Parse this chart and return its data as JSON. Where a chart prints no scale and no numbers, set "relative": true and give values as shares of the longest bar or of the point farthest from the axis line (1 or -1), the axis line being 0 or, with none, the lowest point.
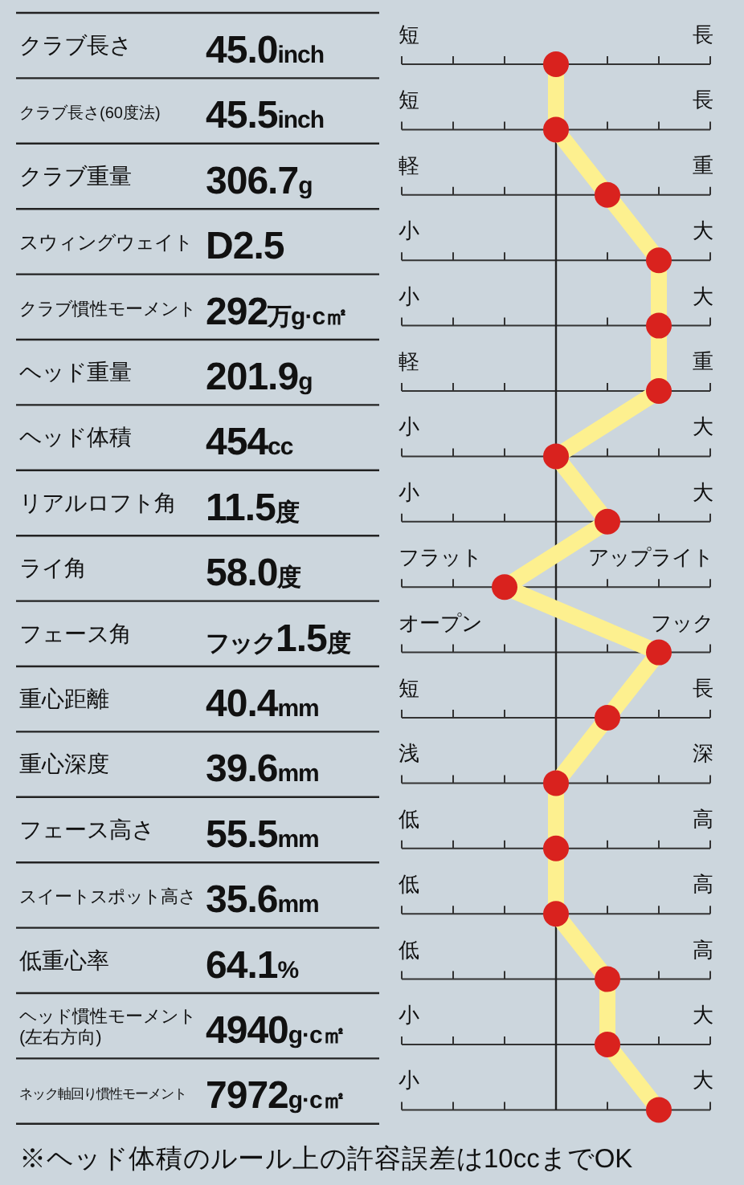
{
  "chart_data": {
    "type": "line",
    "orientation": "horizontal",
    "relative": true,
    "marker": "circle",
    "grid": "y",
    "categories": [
      "クラブ長さ",
      "クラブ長さ(60度法)",
      "クラブ重量",
      "スウィングウェイト",
      "クラブ慣性モーメント",
      "ヘッド重量",
      "ヘッド体積",
      "リアルロフト角",
      "ライ角",
      "フェース角",
      "重心距離",
      "重心深度",
      "フェース高さ",
      "スイートスポット高さ",
      "低重心率",
      "ヘッド慣性モーメント\n(左右方向)",
      "ネック軸回り慣性モーメント"
    ],
    "series": [
      {
        "type": "line",
        "marker": "none",
        "color": "#fdf08f",
        "values": [
          0,
          0,
          0.5,
          1,
          1,
          1,
          0,
          0.5,
          -0.5,
          1,
          0.5,
          0,
          0,
          0,
          0.5,
          0.5,
          1
        ]
      },
      {
        "type": "scatter",
        "color": "#d9221e",
        "values": [
          0,
          0,
          0.5,
          1,
          1,
          1,
          0,
          0.5,
          -0.5,
          1,
          0.5,
          0,
          0,
          0,
          0.5,
          0.5,
          1
        ]
      }
    ],
    "annotations": [
      "45.0inch",
      "45.5inch",
      "306.7g",
      "D2.5",
      "292万g·c㎡",
      "201.9g",
      "454cc",
      "11.5度",
      "58.0度",
      "フック1.5度",
      "40.4mm",
      "39.6mm",
      "55.5mm",
      "35.6mm",
      "64.1%",
      "4940g·c㎡",
      "7972g·c㎡",
      "短",
      "長",
      "短",
      "長",
      "軽",
      "重",
      "小",
      "大",
      "小",
      "大",
      "軽",
      "重",
      "小",
      "大",
      "小",
      "大",
      "フラット",
      "アップライト",
      "オープン",
      "フック",
      "短",
      "長",
      "浅",
      "深",
      "低",
      "高",
      "低",
      "高",
      "低",
      "高",
      "小",
      "大",
      "小",
      "大",
      "※ヘッド体積のルール上の許容誤差は10ccまでOK"
    ]
  }
}
